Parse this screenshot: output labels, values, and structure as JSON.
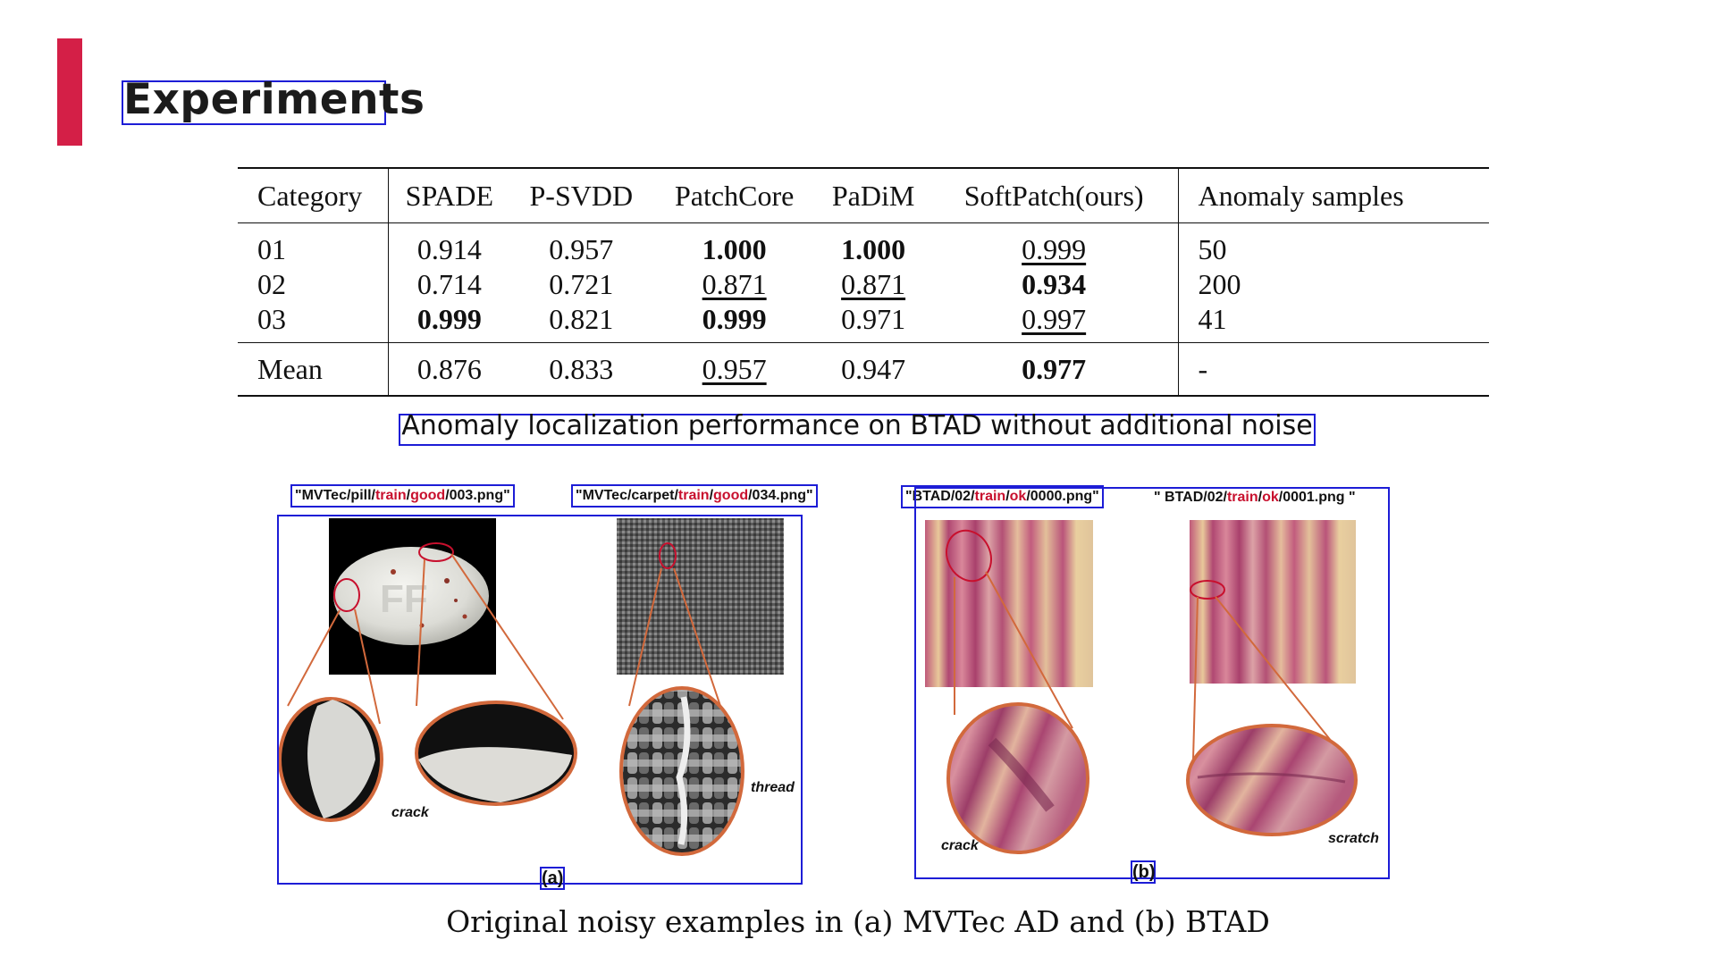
{
  "slide": {
    "title": "Experiments",
    "accent_color": "#d41f47"
  },
  "table": {
    "headers": [
      "Category",
      "SPADE",
      "P-SVDD",
      "PatchCore",
      "PaDiM",
      "SoftPatch(ours)",
      "Anomaly samples"
    ],
    "rows": [
      {
        "category": "01",
        "spade": "0.914",
        "psvdd": "0.957",
        "patchcore": "1.000",
        "padim": "1.000",
        "softpatch": "0.999",
        "anomaly": "50"
      },
      {
        "category": "02",
        "spade": "0.714",
        "psvdd": "0.721",
        "patchcore": "0.871",
        "padim": "0.871",
        "softpatch": "0.934",
        "anomaly": "200"
      },
      {
        "category": "03",
        "spade": "0.999",
        "psvdd": "0.821",
        "patchcore": "0.999",
        "padim": "0.971",
        "softpatch": "0.997",
        "anomaly": "41"
      }
    ],
    "mean": {
      "category": "Mean",
      "spade": "0.876",
      "psvdd": "0.833",
      "patchcore": "0.957",
      "padim": "0.947",
      "softpatch": "0.977",
      "anomaly": "-"
    }
  },
  "caption_table": "Anomaly localization performance on BTAD without additional noise",
  "figure": {
    "paths": {
      "pill": {
        "pre": "\"MVTec/pill/",
        "train": "train",
        "sep": "/",
        "label": "good",
        "post": "/003.png\""
      },
      "carpet": {
        "pre": "\"MVTec/carpet/",
        "train": "train",
        "sep": "/",
        "label": "good",
        "post": "/034.png\""
      },
      "btad0": {
        "pre": "\"BTAD/02/",
        "train": "train",
        "sep": "/",
        "label": "ok",
        "post": "/0000.png\""
      },
      "btad1": {
        "pre": "\" BTAD/02/",
        "train": "train",
        "sep": "/",
        "label": "ok",
        "post": "/0001.png \""
      }
    },
    "defects": {
      "crack_a": "crack",
      "thread": "thread",
      "crack_b": "crack",
      "scratch": "scratch"
    },
    "labels": {
      "a": "(a)",
      "b": "(b)"
    }
  },
  "caption_figure": "Original noisy examples in (a) MVTec AD and (b) BTAD"
}
